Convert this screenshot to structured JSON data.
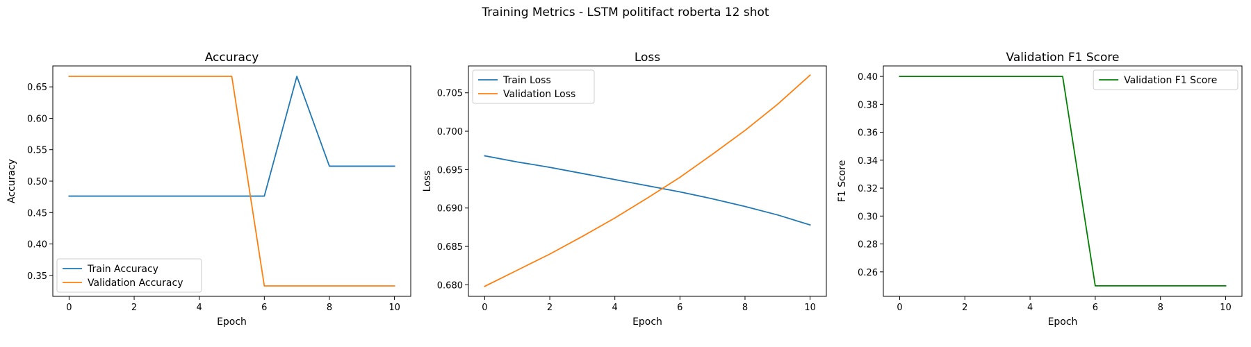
{
  "figure": {
    "title": "Training Metrics - LSTM politifact roberta 12 shot"
  },
  "chart_data": [
    {
      "type": "line",
      "title": "Accuracy",
      "xlabel": "Epoch",
      "ylabel": "Accuracy",
      "xlim": [
        -0.5,
        10.5
      ],
      "ylim": [
        0.3167,
        0.6833
      ],
      "xticks": [
        0,
        2,
        4,
        6,
        8,
        10
      ],
      "yticks": [
        0.35,
        0.4,
        0.45,
        0.5,
        0.55,
        0.6,
        0.65
      ],
      "ytick_decimals": 2,
      "grid": false,
      "legend_position": "lower-left",
      "x": [
        0,
        1,
        2,
        3,
        4,
        5,
        6,
        7,
        8,
        9,
        10
      ],
      "series": [
        {
          "name": "Train Accuracy",
          "color": "#1f77b4",
          "values": [
            0.4762,
            0.4762,
            0.4762,
            0.4762,
            0.4762,
            0.4762,
            0.4762,
            0.6667,
            0.5238,
            0.5238,
            0.5238
          ]
        },
        {
          "name": "Validation Accuracy",
          "color": "#ff7f0e",
          "values": [
            0.6667,
            0.6667,
            0.6667,
            0.6667,
            0.6667,
            0.6667,
            0.3333,
            0.3333,
            0.3333,
            0.3333,
            0.3333
          ]
        }
      ]
    },
    {
      "type": "line",
      "title": "Loss",
      "xlabel": "Epoch",
      "ylabel": "Loss",
      "xlim": [
        -0.5,
        10.5
      ],
      "ylim": [
        0.6785,
        0.7085
      ],
      "xticks": [
        0,
        2,
        4,
        6,
        8,
        10
      ],
      "yticks": [
        0.68,
        0.685,
        0.69,
        0.695,
        0.7,
        0.705
      ],
      "ytick_decimals": 3,
      "grid": false,
      "legend_position": "upper-left",
      "x": [
        0,
        1,
        2,
        3,
        4,
        5,
        6,
        7,
        8,
        9,
        10
      ],
      "series": [
        {
          "name": "Train Loss",
          "color": "#1f77b4",
          "values": [
            0.6968,
            0.696,
            0.6953,
            0.6945,
            0.6937,
            0.6929,
            0.6921,
            0.6912,
            0.6902,
            0.6891,
            0.6878
          ]
        },
        {
          "name": "Validation Loss",
          "color": "#ff7f0e",
          "values": [
            0.6798,
            0.6819,
            0.684,
            0.6863,
            0.6887,
            0.6913,
            0.694,
            0.697,
            0.7001,
            0.7035,
            0.7073
          ]
        }
      ]
    },
    {
      "type": "line",
      "title": "Validation F1 Score",
      "xlabel": "Epoch",
      "ylabel": "F1 Score",
      "xlim": [
        -0.5,
        10.5
      ],
      "ylim": [
        0.2425,
        0.4075
      ],
      "xticks": [
        0,
        2,
        4,
        6,
        8,
        10
      ],
      "yticks": [
        0.26,
        0.28,
        0.3,
        0.32,
        0.34,
        0.36,
        0.38,
        0.4
      ],
      "ytick_decimals": 2,
      "grid": false,
      "legend_position": "upper-right",
      "x": [
        0,
        1,
        2,
        3,
        4,
        5,
        6,
        7,
        8,
        9,
        10
      ],
      "series": [
        {
          "name": "Validation F1 Score",
          "color": "#008000",
          "values": [
            0.4,
            0.4,
            0.4,
            0.4,
            0.4,
            0.4,
            0.25,
            0.25,
            0.25,
            0.25,
            0.25
          ]
        }
      ]
    }
  ]
}
